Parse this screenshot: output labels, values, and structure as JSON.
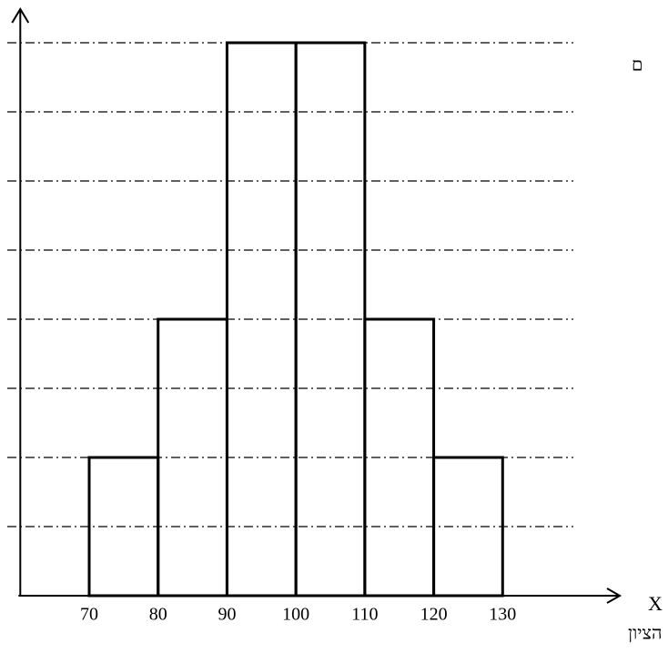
{
  "chart_data": {
    "type": "histogram",
    "bins": [
      70,
      80,
      90,
      100,
      110,
      120,
      130
    ],
    "values": [
      2,
      4,
      8,
      8,
      4,
      2
    ],
    "color": "#000000",
    "xlim": [
      60,
      147
    ],
    "ylim": [
      0,
      8.5
    ],
    "xticks": [
      70,
      80,
      90,
      100,
      110,
      120,
      130
    ],
    "yticks": [
      1,
      2,
      3,
      4,
      5,
      6,
      7,
      8
    ],
    "ytick_labels": false,
    "grid": true,
    "x_axis_label": "X",
    "x_axis_title": "הציון",
    "annotation": "ם"
  }
}
